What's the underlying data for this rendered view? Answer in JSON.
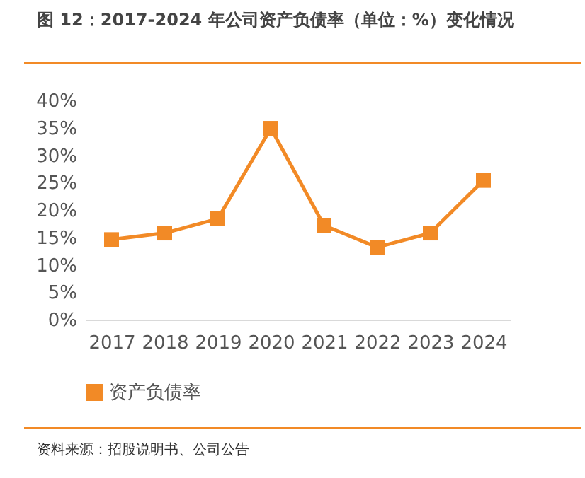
{
  "chart_data": {
    "type": "line",
    "title": "图 12：2017-2024 年公司资产负债率（单位：%）变化情况",
    "categories": [
      "2017",
      "2018",
      "2019",
      "2020",
      "2021",
      "2022",
      "2023",
      "2024"
    ],
    "series": [
      {
        "name": "资产负债率",
        "color": "#f28a26",
        "values": [
          14.6,
          15.8,
          18.4,
          34.9,
          17.2,
          13.2,
          15.8,
          25.4
        ]
      }
    ],
    "ylim": [
      0,
      40
    ],
    "yticks": [
      {
        "value": 0,
        "label": "0%"
      },
      {
        "value": 5,
        "label": "5%"
      },
      {
        "value": 10,
        "label": "10%"
      },
      {
        "value": 15,
        "label": "15%"
      },
      {
        "value": 20,
        "label": "20%"
      },
      {
        "value": 25,
        "label": "25%"
      },
      {
        "value": 30,
        "label": "30%"
      },
      {
        "value": 35,
        "label": "35%"
      },
      {
        "value": 40,
        "label": "40%"
      }
    ],
    "marker": "square",
    "legend": "bottom",
    "grid": false,
    "annotations": [
      "资料来源：招股说明书、公司公告"
    ]
  }
}
